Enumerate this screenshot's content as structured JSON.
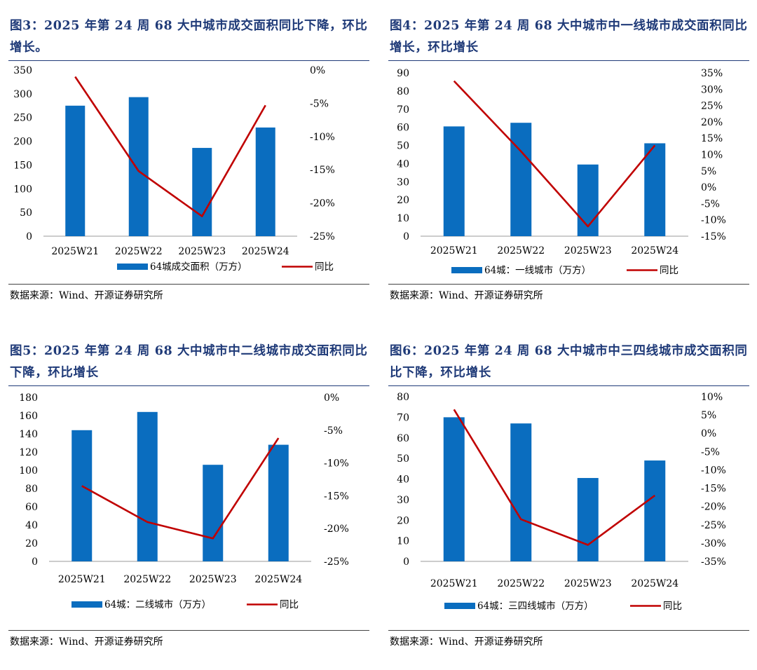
{
  "colors": {
    "bar": "#0a6dbf",
    "line": "#c00000",
    "title": "#1f3a78"
  },
  "panels": [
    {
      "title": "图3：2025 年第 24 周 68 大中城市成交面积同比下降，环比增长。",
      "source": "数据来源：Wind、开源证券研究所",
      "chart_data": {
        "type": "bar+line",
        "categories": [
          "2025W21",
          "2025W22",
          "2025W23",
          "2025W24"
        ],
        "series": [
          {
            "name": "64城成交面积（万方）",
            "type": "bar",
            "axis": "left",
            "values": [
              275,
              293,
              186,
              229
            ]
          },
          {
            "name": "同比",
            "type": "line",
            "axis": "right",
            "values": [
              -1.0,
              -15.2,
              -22.0,
              -5.3
            ]
          }
        ],
        "left_axis": {
          "min": 0,
          "max": 350,
          "step": 50,
          "ticks": [
            "0",
            "50",
            "100",
            "150",
            "200",
            "250",
            "300",
            "350"
          ]
        },
        "right_axis": {
          "min": -25,
          "max": 0,
          "step": 5,
          "ticks": [
            "-25%",
            "-20%",
            "-15%",
            "-10%",
            "-5%",
            "0%"
          ]
        },
        "legend": {
          "bar": "64城成交面积（万方）",
          "line": "同比"
        }
      }
    },
    {
      "title": "图4：2025 年第 24 周 68 大中城市中一线城市成交面积同比增长，环比增长",
      "source": "数据来源：Wind、开源证券研究所",
      "chart_data": {
        "type": "bar+line",
        "categories": [
          "2025W21",
          "2025W22",
          "2025W23",
          "2025W24"
        ],
        "series": [
          {
            "name": "64城：一线城市（万方）",
            "type": "bar",
            "axis": "left",
            "values": [
              60.5,
              62.5,
              39.5,
              51.2
            ]
          },
          {
            "name": "同比",
            "type": "line",
            "axis": "right",
            "values": [
              32.5,
              11.0,
              -12.0,
              12.8
            ]
          }
        ],
        "left_axis": {
          "min": 0,
          "max": 90,
          "step": 10,
          "ticks": [
            "0",
            "10",
            "20",
            "30",
            "40",
            "50",
            "60",
            "70",
            "80",
            "90"
          ]
        },
        "right_axis": {
          "min": -15,
          "max": 35,
          "step": 5,
          "ticks": [
            "-15%",
            "-10%",
            "-5%",
            "0%",
            "5%",
            "10%",
            "15%",
            "20%",
            "25%",
            "30%",
            "35%"
          ]
        },
        "legend": {
          "bar": "64城：一线城市（万方）",
          "line": "同比"
        }
      }
    },
    {
      "title": "图5：2025 年第 24 周 68 大中城市中二线城市成交面积同比下降，环比增长",
      "source": "数据来源：Wind、开源证券研究所",
      "chart_data": {
        "type": "bar+line",
        "categories": [
          "2025W21",
          "2025W22",
          "2025W23",
          "2025W24"
        ],
        "series": [
          {
            "name": "64城：二线城市（万方）",
            "type": "bar",
            "axis": "left",
            "values": [
              144,
              164,
              106,
              128
            ]
          },
          {
            "name": "同比",
            "type": "line",
            "axis": "right",
            "values": [
              -13.5,
              -19.0,
              -21.5,
              -6.2
            ]
          }
        ],
        "left_axis": {
          "min": 0,
          "max": 180,
          "step": 20,
          "ticks": [
            "0",
            "20",
            "40",
            "60",
            "80",
            "100",
            "120",
            "140",
            "160",
            "180"
          ]
        },
        "right_axis": {
          "min": -25,
          "max": 0,
          "step": 5,
          "ticks": [
            "-25%",
            "-20%",
            "-15%",
            "-10%",
            "-5%",
            "0%"
          ]
        },
        "legend": {
          "bar": "64城：二线城市（万方）",
          "line": "同比"
        }
      }
    },
    {
      "title": "图6：2025 年第 24 周 68 大中城市中三四线城市成交面积同比下降，环比增长",
      "source": "数据来源：Wind、开源证券研究所",
      "chart_data": {
        "type": "bar+line",
        "categories": [
          "2025W21",
          "2025W22",
          "2025W23",
          "2025W24"
        ],
        "series": [
          {
            "name": "64城：三四线城市（万方）",
            "type": "bar",
            "axis": "left",
            "values": [
              70,
              67,
              40.5,
              49
            ]
          },
          {
            "name": "同比",
            "type": "line",
            "axis": "right",
            "values": [
              6.5,
              -23.5,
              -30.5,
              -17.0
            ]
          }
        ],
        "left_axis": {
          "min": 0,
          "max": 80,
          "step": 10,
          "ticks": [
            "0",
            "10",
            "20",
            "30",
            "40",
            "50",
            "60",
            "70",
            "80"
          ]
        },
        "right_axis": {
          "min": -35,
          "max": 10,
          "step": 5,
          "ticks": [
            "-35%",
            "-30%",
            "-25%",
            "-20%",
            "-15%",
            "-10%",
            "-5%",
            "0%",
            "5%",
            "10%"
          ]
        },
        "legend": {
          "bar": "64城：三四线城市（万方）",
          "line": "同比"
        }
      }
    }
  ]
}
